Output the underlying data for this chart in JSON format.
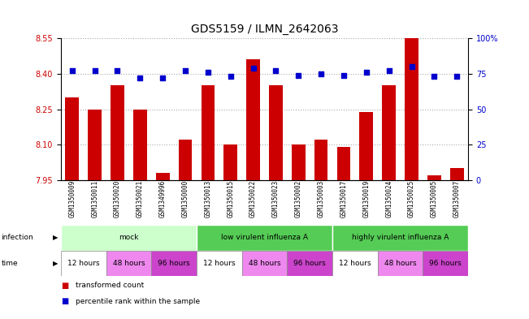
{
  "title": "GDS5159 / ILMN_2642063",
  "sample_ids": [
    "GSM1350009",
    "GSM1350011",
    "GSM1350020",
    "GSM1350021",
    "GSM1349996",
    "GSM1350000",
    "GSM1350013",
    "GSM1350015",
    "GSM1350022",
    "GSM1350023",
    "GSM1350002",
    "GSM1350003",
    "GSM1350017",
    "GSM1350019",
    "GSM1350024",
    "GSM1350025",
    "GSM1350005",
    "GSM1350007"
  ],
  "bar_values": [
    8.3,
    8.25,
    8.35,
    8.25,
    7.98,
    8.12,
    8.35,
    8.1,
    8.46,
    8.35,
    8.1,
    8.12,
    8.09,
    8.24,
    8.35,
    8.55,
    7.97,
    8.0
  ],
  "percentile_values": [
    77,
    77,
    77,
    72,
    72,
    77,
    76,
    73,
    79,
    77,
    74,
    75,
    74,
    76,
    77,
    80,
    73,
    73
  ],
  "ylim_left": [
    7.95,
    8.55
  ],
  "ylim_right": [
    0,
    100
  ],
  "yticks_left": [
    7.95,
    8.1,
    8.25,
    8.4,
    8.55
  ],
  "yticks_right": [
    0,
    25,
    50,
    75,
    100
  ],
  "bar_color": "#cc0000",
  "dot_color": "#0000cc",
  "bar_width": 0.6,
  "inf_groups": [
    {
      "label": "mock",
      "start": 0,
      "end": 6,
      "color": "#ccffcc"
    },
    {
      "label": "low virulent influenza A",
      "start": 6,
      "end": 12,
      "color": "#55cc55"
    },
    {
      "label": "highly virulent influenza A",
      "start": 12,
      "end": 18,
      "color": "#55cc55"
    }
  ],
  "time_groups": [
    {
      "label": "12 hours",
      "start": 0,
      "end": 2,
      "color": "#ffffff"
    },
    {
      "label": "48 hours",
      "start": 2,
      "end": 4,
      "color": "#ee88ee"
    },
    {
      "label": "96 hours",
      "start": 4,
      "end": 6,
      "color": "#cc44cc"
    },
    {
      "label": "12 hours",
      "start": 6,
      "end": 8,
      "color": "#ffffff"
    },
    {
      "label": "48 hours",
      "start": 8,
      "end": 10,
      "color": "#ee88ee"
    },
    {
      "label": "96 hours",
      "start": 10,
      "end": 12,
      "color": "#cc44cc"
    },
    {
      "label": "12 hours",
      "start": 12,
      "end": 14,
      "color": "#ffffff"
    },
    {
      "label": "48 hours",
      "start": 14,
      "end": 16,
      "color": "#ee88ee"
    },
    {
      "label": "96 hours",
      "start": 16,
      "end": 18,
      "color": "#cc44cc"
    }
  ],
  "grid_color": "#aaaaaa",
  "title_fontsize": 10,
  "tick_fontsize": 7,
  "label_fontsize": 7
}
